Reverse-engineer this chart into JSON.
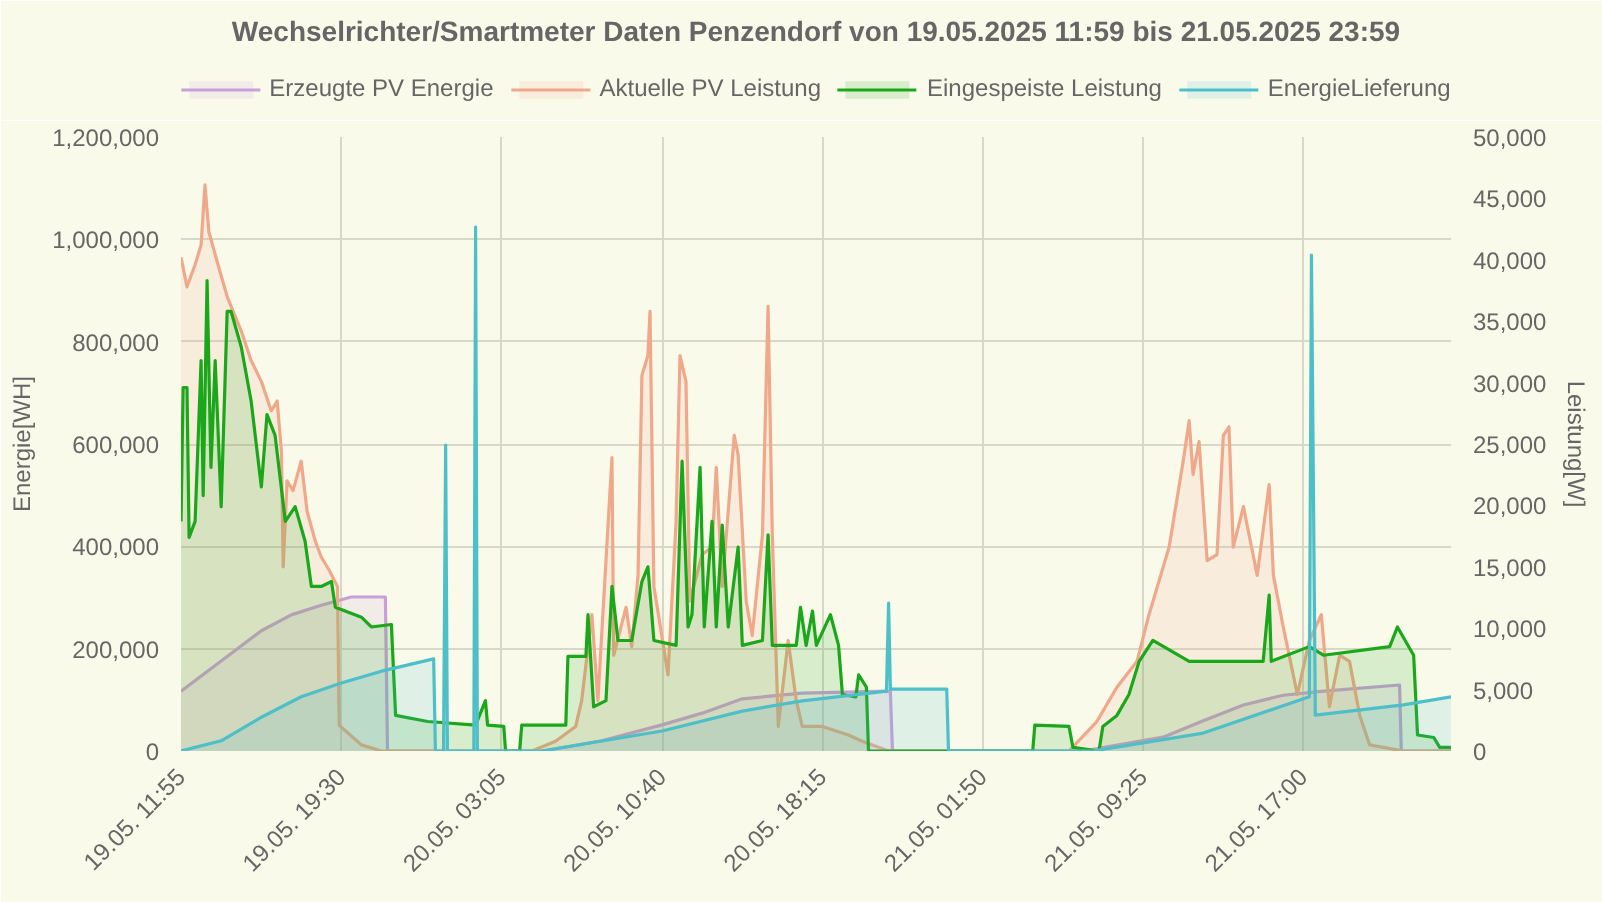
{
  "chart_data": {
    "type": "area",
    "title": "Wechselrichter/Smartmeter Daten Penzendorf von 19.05.2025 11:59 bis 21.05.2025 23:59",
    "ylabel": "Energie[WH]",
    "y2label": "Leistung[W]",
    "legend": "top",
    "grid": true,
    "xlim": [
      "2025-05-19T11:55",
      "2025-05-21T23:59"
    ],
    "xticks": [
      {
        "value": "2025-05-19T11:55",
        "label": "19.05. 11:55"
      },
      {
        "value": "2025-05-19T19:30",
        "label": "19.05. 19:30"
      },
      {
        "value": "2025-05-20T03:05",
        "label": "20.05. 03:05"
      },
      {
        "value": "2025-05-20T10:40",
        "label": "20.05. 10:40"
      },
      {
        "value": "2025-05-20T18:15",
        "label": "20.05. 18:15"
      },
      {
        "value": "2025-05-21T01:50",
        "label": "21.05. 01:50"
      },
      {
        "value": "2025-05-21T09:25",
        "label": "21.05. 09:25"
      },
      {
        "value": "2025-05-21T17:00",
        "label": "21.05. 17:00"
      }
    ],
    "ylim": [
      0,
      1200000
    ],
    "yticks": [
      {
        "value": 0,
        "label": "0"
      },
      {
        "value": 200000,
        "label": "200,000"
      },
      {
        "value": 400000,
        "label": "400,000"
      },
      {
        "value": 600000,
        "label": "600,000"
      },
      {
        "value": 800000,
        "label": "800,000"
      },
      {
        "value": 1000000,
        "label": "1,000,000"
      },
      {
        "value": 1200000,
        "label": "1,200,000"
      }
    ],
    "y2lim": [
      0,
      50000
    ],
    "y2ticks": [
      {
        "value": 0,
        "label": "0"
      },
      {
        "value": 5000,
        "label": "5,000"
      },
      {
        "value": 10000,
        "label": "10,000"
      },
      {
        "value": 15000,
        "label": "15,000"
      },
      {
        "value": 20000,
        "label": "20,000"
      },
      {
        "value": 25000,
        "label": "25,000"
      },
      {
        "value": 30000,
        "label": "30,000"
      },
      {
        "value": 35000,
        "label": "35,000"
      },
      {
        "value": 40000,
        "label": "40,000"
      },
      {
        "value": 45000,
        "label": "45,000"
      },
      {
        "value": 50000,
        "label": "50,000"
      }
    ],
    "series": [
      {
        "name": "Erzeugte PV Energie",
        "color": "#c8a0d8",
        "x": [
          "2025-05-19T11:55",
          "2025-05-19T13:49",
          "2025-05-19T15:43",
          "2025-05-19T17:08",
          "2025-05-19T18:33",
          "2025-05-19T19:58",
          "2025-05-19T21:35",
          "2025-05-19T21:41",
          "2025-05-20T04:59",
          "2025-05-20T07:49",
          "2025-05-20T10:40",
          "2025-05-20T12:34",
          "2025-05-20T14:28",
          "2025-05-20T17:18",
          "2025-05-20T21:28",
          "2025-05-20T21:34",
          "2025-05-21T06:34",
          "2025-05-21T10:22",
          "2025-05-21T12:16",
          "2025-05-21T14:10",
          "2025-05-21T16:03",
          "2025-05-21T17:57",
          "2025-05-21T21:33",
          "2025-05-21T21:38",
          "2025-05-21T23:59"
        ],
        "values": [
          117000,
          176000,
          235000,
          266000,
          285000,
          301000,
          301000,
          0,
          0,
          20000,
          51000,
          74000,
          102000,
          113000,
          117000,
          0,
          0,
          27000,
          59000,
          90000,
          109000,
          117000,
          129000,
          0,
          0
        ]
      },
      {
        "name": "Aktuelle PV Leistung",
        "color": "#f0a88a",
        "axis": "y2",
        "x": [
          "2025-05-19T11:55",
          "2025-05-19T12:12",
          "2025-05-19T12:35",
          "2025-05-19T12:52",
          "2025-05-19T13:03",
          "2025-05-19T13:14",
          "2025-05-19T13:37",
          "2025-05-19T14:06",
          "2025-05-19T14:46",
          "2025-05-19T15:14",
          "2025-05-19T15:43",
          "2025-05-19T16:11",
          "2025-05-19T16:28",
          "2025-05-19T16:40",
          "2025-05-19T16:45",
          "2025-05-19T16:56",
          "2025-05-19T17:13",
          "2025-05-19T17:36",
          "2025-05-19T17:53",
          "2025-05-19T18:16",
          "2025-05-19T18:33",
          "2025-05-19T18:56",
          "2025-05-19T19:19",
          "2025-05-19T19:24",
          "2025-05-19T20:27",
          "2025-05-19T21:24",
          "2025-05-20T04:31",
          "2025-05-20T05:38",
          "2025-05-20T06:35",
          "2025-05-20T06:52",
          "2025-05-20T07:21",
          "2025-05-20T07:38",
          "2025-05-20T08:18",
          "2025-05-20T08:23",
          "2025-05-20T08:58",
          "2025-05-20T09:14",
          "2025-05-20T09:32",
          "2025-05-20T09:43",
          "2025-05-20T10:00",
          "2025-05-20T10:06",
          "2025-05-20T10:17",
          "2025-05-20T10:57",
          "2025-05-20T11:20",
          "2025-05-20T11:31",
          "2025-05-20T11:48",
          "2025-05-20T11:59",
          "2025-05-20T12:34",
          "2025-05-20T13:02",
          "2025-05-20T13:14",
          "2025-05-20T13:31",
          "2025-05-20T14:05",
          "2025-05-20T14:16",
          "2025-05-20T14:39",
          "2025-05-20T14:56",
          "2025-05-20T15:25",
          "2025-05-20T15:41",
          "2025-05-20T15:53",
          "2025-05-20T16:10",
          "2025-05-20T16:38",
          "2025-05-20T17:01",
          "2025-05-20T17:18",
          "2025-05-20T18:15",
          "2025-05-20T19:29",
          "2025-05-20T20:08",
          "2025-05-20T21:23",
          "2025-05-21T05:55",
          "2025-05-21T07:14",
          "2025-05-21T08:11",
          "2025-05-21T09:08",
          "2025-05-21T09:42",
          "2025-05-21T10:39",
          "2025-05-21T11:19",
          "2025-05-21T11:36",
          "2025-05-21T11:47",
          "2025-05-21T12:04",
          "2025-05-21T12:27",
          "2025-05-21T12:55",
          "2025-05-21T13:13",
          "2025-05-21T13:29",
          "2025-05-21T13:41",
          "2025-05-21T14:10",
          "2025-05-21T14:49",
          "2025-05-21T15:23",
          "2025-05-21T15:35",
          "2025-05-21T16:03",
          "2025-05-21T16:43",
          "2025-05-21T17:17",
          "2025-05-21T17:51",
          "2025-05-21T18:14",
          "2025-05-21T18:43",
          "2025-05-21T19:11",
          "2025-05-21T19:40",
          "2025-05-21T20:08",
          "2025-05-21T21:44",
          "2025-05-21T23:59"
        ],
        "values": [
          40200,
          37800,
          39600,
          41200,
          46100,
          42300,
          39900,
          37000,
          34200,
          31800,
          30100,
          27700,
          28500,
          24400,
          15000,
          22000,
          21200,
          23600,
          19500,
          17100,
          15800,
          14700,
          13400,
          2100,
          500,
          0,
          0,
          800,
          2000,
          4100,
          11100,
          4100,
          23900,
          7800,
          11700,
          8500,
          14300,
          30600,
          32200,
          35800,
          13400,
          6200,
          18700,
          32200,
          30100,
          12200,
          16000,
          16600,
          23100,
          13400,
          25700,
          24100,
          12200,
          9400,
          17600,
          36200,
          17600,
          2000,
          9000,
          4100,
          2000,
          2000,
          1300,
          800,
          0,
          0,
          2400,
          5200,
          7300,
          11100,
          16600,
          23600,
          26900,
          22500,
          25200,
          15500,
          16000,
          25700,
          26400,
          16600,
          19900,
          14300,
          21700,
          14300,
          10100,
          4600,
          9000,
          11100,
          3600,
          7800,
          7300,
          2900,
          500,
          0,
          0
        ]
      },
      {
        "name": "Eingespeiste Leistung",
        "color": "#1aa81a",
        "axis": "y2",
        "x": [
          "2025-05-19T11:55",
          "2025-05-19T12:01",
          "2025-05-19T12:12",
          "2025-05-19T12:18",
          "2025-05-19T12:35",
          "2025-05-19T12:52",
          "2025-05-19T12:58",
          "2025-05-19T13:09",
          "2025-05-19T13:20",
          "2025-05-19T13:32",
          "2025-05-19T13:49",
          "2025-05-19T14:06",
          "2025-05-19T14:17",
          "2025-05-19T14:46",
          "2025-05-19T15:14",
          "2025-05-19T15:43",
          "2025-05-19T15:59",
          "2025-05-19T16:22",
          "2025-05-19T16:51",
          "2025-05-19T17:19",
          "2025-05-19T17:47",
          "2025-05-19T18:05",
          "2025-05-19T18:33",
          "2025-05-19T19:02",
          "2025-05-19T19:13",
          "2025-05-19T20:27",
          "2025-05-19T20:55",
          "2025-05-19T21:52",
          "2025-05-19T22:04",
          "2025-05-19T23:35",
          "2025-05-20T01:51",
          "2025-05-20T02:19",
          "2025-05-20T02:25",
          "2025-05-20T03:11",
          "2025-05-20T03:16",
          "2025-05-20T03:56",
          "2025-05-20T04:02",
          "2025-05-20T06:07",
          "2025-05-20T06:13",
          "2025-05-20T07:04",
          "2025-05-20T07:10",
          "2025-05-20T07:26",
          "2025-05-20T08:01",
          "2025-05-20T08:18",
          "2025-05-20T08:35",
          "2025-05-20T09:14",
          "2025-05-20T09:43",
          "2025-05-20T10:00",
          "2025-05-20T10:17",
          "2025-05-20T11:20",
          "2025-05-20T11:37",
          "2025-05-20T11:54",
          "2025-05-20T12:05",
          "2025-05-20T12:28",
          "2025-05-20T12:40",
          "2025-05-20T13:02",
          "2025-05-20T13:14",
          "2025-05-20T13:31",
          "2025-05-20T13:48",
          "2025-05-20T14:16",
          "2025-05-20T14:28",
          "2025-05-20T15:25",
          "2025-05-20T15:41",
          "2025-05-20T15:53",
          "2025-05-20T17:01",
          "2025-05-20T17:13",
          "2025-05-20T17:29",
          "2025-05-20T17:47",
          "2025-05-20T17:58",
          "2025-05-20T18:38",
          "2025-05-20T19:01",
          "2025-05-20T19:12",
          "2025-05-20T19:50",
          "2025-05-20T19:58",
          "2025-05-20T20:20",
          "2025-05-20T20:26",
          "2025-05-21T04:12",
          "2025-05-21T04:18",
          "2025-05-21T05:55",
          "2025-05-21T06:06",
          "2025-05-21T07:20",
          "2025-05-21T07:31",
          "2025-05-21T08:11",
          "2025-05-21T08:45",
          "2025-05-21T09:14",
          "2025-05-21T09:53",
          "2025-05-21T11:36",
          "2025-05-21T15:06",
          "2025-05-21T15:23",
          "2025-05-21T15:29",
          "2025-05-21T17:17",
          "2025-05-21T17:57",
          "2025-05-21T21:05",
          "2025-05-21T21:27",
          "2025-05-21T22:13",
          "2025-05-21T22:24",
          "2025-05-21T23:10",
          "2025-05-21T23:27",
          "2025-05-21T23:59"
        ],
        "values": [
          18700,
          29600,
          29600,
          17400,
          18700,
          31800,
          20800,
          38300,
          23100,
          31800,
          19900,
          35800,
          35800,
          32900,
          28500,
          21500,
          27400,
          25700,
          18700,
          19900,
          17100,
          13400,
          13400,
          13800,
          11700,
          10900,
          10100,
          10300,
          2900,
          2400,
          2100,
          4100,
          2100,
          2000,
          0,
          0,
          2100,
          2100,
          7700,
          7700,
          11100,
          3600,
          4100,
          13400,
          9000,
          9000,
          13800,
          15000,
          9000,
          8600,
          23600,
          10100,
          11100,
          23100,
          10100,
          18700,
          10100,
          18400,
          10100,
          16600,
          8600,
          9000,
          17600,
          8600,
          8600,
          11700,
          8600,
          11400,
          8600,
          11100,
          8600,
          4600,
          4400,
          6200,
          5200,
          0,
          0,
          2100,
          2000,
          300,
          0,
          2000,
          2900,
          4600,
          7300,
          9000,
          7300,
          7300,
          12700,
          7300,
          8500,
          7800,
          8500,
          10100,
          7800,
          1300,
          1100,
          300,
          300
        ]
      },
      {
        "name": "EnergieLieferung",
        "color": "#4dbfc8",
        "x": [
          "2025-05-19T11:55",
          "2025-05-19T13:49",
          "2025-05-19T15:43",
          "2025-05-19T17:36",
          "2025-05-19T19:30",
          "2025-05-19T21:24",
          "2025-05-19T23:52",
          "2025-05-19T23:57",
          "2025-05-20T00:20",
          "2025-05-20T00:26",
          "2025-05-20T00:31",
          "2025-05-20T01:46",
          "2025-05-20T01:51",
          "2025-05-20T01:56",
          "2025-05-20T04:59",
          "2025-05-20T10:40",
          "2025-05-20T14:28",
          "2025-05-20T17:18",
          "2025-05-20T21:17",
          "2025-05-20T21:23",
          "2025-05-20T21:28",
          "2025-05-21T00:08",
          "2025-05-21T00:13",
          "2025-05-21T07:03",
          "2025-05-21T12:16",
          "2025-05-21T17:17",
          "2025-05-21T17:23",
          "2025-05-21T17:34",
          "2025-05-21T21:44",
          "2025-05-21T23:59"
        ],
        "values": [
          0,
          20000,
          66000,
          106000,
          133000,
          156000,
          180000,
          0,
          0,
          598000,
          0,
          0,
          1024000,
          0,
          0,
          39000,
          78000,
          98000,
          117000,
          289000,
          121000,
          121000,
          0,
          0,
          35000,
          106000,
          969000,
          70000,
          90000,
          106000
        ]
      }
    ]
  }
}
